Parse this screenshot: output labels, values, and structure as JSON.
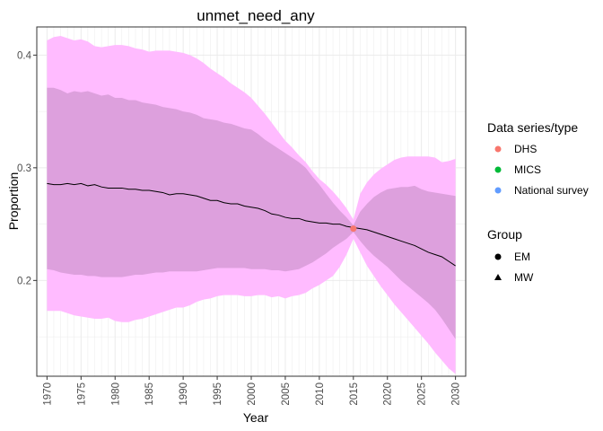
{
  "chart_data": {
    "type": "line",
    "title": "unmet_need_any",
    "xlabel": "Year",
    "ylabel": "Proportion",
    "xlim": [
      1968.5,
      2031.5
    ],
    "ylim": [
      0.115,
      0.425
    ],
    "x_ticks": [
      1970,
      1975,
      1980,
      1985,
      1990,
      1995,
      2000,
      2005,
      2010,
      2015,
      2020,
      2025,
      2030
    ],
    "x_tick_labels": [
      "1970",
      "1975",
      "1980",
      "1985",
      "1990",
      "1995",
      "2000",
      "2005",
      "2010",
      "2015",
      "2020",
      "2025",
      "2030"
    ],
    "y_ticks": [
      0.2,
      0.3,
      0.4
    ],
    "y_tick_labels": [
      "0.2",
      "0.3",
      "0.4"
    ],
    "grid": true,
    "years": [
      1970,
      1971,
      1972,
      1973,
      1974,
      1975,
      1976,
      1977,
      1978,
      1979,
      1980,
      1981,
      1982,
      1983,
      1984,
      1985,
      1986,
      1987,
      1988,
      1989,
      1990,
      1991,
      1992,
      1993,
      1994,
      1995,
      1996,
      1997,
      1998,
      1999,
      2000,
      2001,
      2002,
      2003,
      2004,
      2005,
      2006,
      2007,
      2008,
      2009,
      2010,
      2011,
      2012,
      2013,
      2014,
      2015,
      2016,
      2017,
      2018,
      2019,
      2020,
      2021,
      2022,
      2023,
      2024,
      2025,
      2026,
      2027,
      2028,
      2029,
      2030
    ],
    "median": [
      0.286,
      0.285,
      0.285,
      0.286,
      0.285,
      0.286,
      0.284,
      0.285,
      0.283,
      0.282,
      0.282,
      0.282,
      0.281,
      0.281,
      0.28,
      0.28,
      0.279,
      0.278,
      0.276,
      0.277,
      0.277,
      0.276,
      0.275,
      0.273,
      0.271,
      0.271,
      0.269,
      0.268,
      0.268,
      0.266,
      0.265,
      0.264,
      0.262,
      0.259,
      0.258,
      0.256,
      0.255,
      0.255,
      0.253,
      0.252,
      0.251,
      0.251,
      0.25,
      0.25,
      0.248,
      0.247,
      0.246,
      0.245,
      0.243,
      0.241,
      0.239,
      0.237,
      0.235,
      0.233,
      0.231,
      0.228,
      0.225,
      0.223,
      0.221,
      0.217,
      0.213
    ],
    "inner_lower": [
      0.21,
      0.209,
      0.207,
      0.206,
      0.205,
      0.205,
      0.204,
      0.204,
      0.203,
      0.203,
      0.203,
      0.203,
      0.204,
      0.205,
      0.205,
      0.206,
      0.207,
      0.207,
      0.208,
      0.208,
      0.208,
      0.208,
      0.208,
      0.209,
      0.21,
      0.211,
      0.211,
      0.211,
      0.211,
      0.211,
      0.21,
      0.21,
      0.21,
      0.209,
      0.209,
      0.208,
      0.209,
      0.21,
      0.213,
      0.216,
      0.22,
      0.224,
      0.229,
      0.233,
      0.237,
      0.243,
      0.235,
      0.228,
      0.222,
      0.217,
      0.212,
      0.206,
      0.2,
      0.195,
      0.19,
      0.185,
      0.18,
      0.174,
      0.166,
      0.157,
      0.148
    ],
    "inner_upper": [
      0.371,
      0.371,
      0.369,
      0.366,
      0.368,
      0.367,
      0.368,
      0.366,
      0.364,
      0.365,
      0.362,
      0.362,
      0.36,
      0.36,
      0.358,
      0.357,
      0.356,
      0.354,
      0.353,
      0.352,
      0.35,
      0.349,
      0.347,
      0.344,
      0.343,
      0.342,
      0.34,
      0.339,
      0.337,
      0.335,
      0.334,
      0.33,
      0.325,
      0.321,
      0.317,
      0.313,
      0.309,
      0.305,
      0.3,
      0.292,
      0.285,
      0.277,
      0.269,
      0.262,
      0.256,
      0.249,
      0.261,
      0.268,
      0.274,
      0.278,
      0.281,
      0.282,
      0.283,
      0.283,
      0.284,
      0.281,
      0.279,
      0.278,
      0.277,
      0.276,
      0.275
    ],
    "outer_lower": [
      0.173,
      0.173,
      0.173,
      0.171,
      0.169,
      0.168,
      0.167,
      0.166,
      0.166,
      0.167,
      0.164,
      0.163,
      0.163,
      0.165,
      0.166,
      0.168,
      0.17,
      0.172,
      0.174,
      0.176,
      0.176,
      0.178,
      0.181,
      0.183,
      0.184,
      0.186,
      0.187,
      0.187,
      0.187,
      0.186,
      0.186,
      0.187,
      0.187,
      0.185,
      0.186,
      0.184,
      0.186,
      0.187,
      0.189,
      0.193,
      0.196,
      0.2,
      0.204,
      0.212,
      0.223,
      0.237,
      0.225,
      0.213,
      0.204,
      0.195,
      0.187,
      0.179,
      0.172,
      0.165,
      0.158,
      0.151,
      0.144,
      0.136,
      0.129,
      0.122,
      0.117
    ],
    "outer_upper": [
      0.413,
      0.416,
      0.417,
      0.415,
      0.413,
      0.414,
      0.412,
      0.408,
      0.407,
      0.408,
      0.409,
      0.409,
      0.408,
      0.406,
      0.405,
      0.403,
      0.404,
      0.404,
      0.404,
      0.403,
      0.402,
      0.4,
      0.397,
      0.393,
      0.388,
      0.384,
      0.38,
      0.375,
      0.371,
      0.367,
      0.362,
      0.355,
      0.348,
      0.34,
      0.332,
      0.324,
      0.318,
      0.311,
      0.305,
      0.297,
      0.29,
      0.285,
      0.279,
      0.272,
      0.264,
      0.254,
      0.277,
      0.287,
      0.294,
      0.299,
      0.303,
      0.307,
      0.309,
      0.31,
      0.31,
      0.31,
      0.31,
      0.309,
      0.305,
      0.306,
      0.308
    ],
    "points": [
      {
        "x": 2015,
        "y": 0.246,
        "series": "DHS",
        "group": "EM"
      }
    ],
    "colors": {
      "outer_band": "#ffbbff",
      "inner_band": "#dda0dd",
      "line": "#000000",
      "DHS": "#f8766d",
      "MICS": "#00ba38",
      "National survey": "#619cff",
      "grid": "#ebebeb"
    },
    "legend": {
      "position": "right",
      "series_title": "Data series/type",
      "series": [
        {
          "label": "DHS",
          "color": "#f8766d"
        },
        {
          "label": "MICS",
          "color": "#00ba38"
        },
        {
          "label": "National survey",
          "color": "#619cff"
        }
      ],
      "group_title": "Group",
      "groups": [
        {
          "label": "EM",
          "shape": "circle"
        },
        {
          "label": "MW",
          "shape": "triangle"
        }
      ]
    }
  }
}
